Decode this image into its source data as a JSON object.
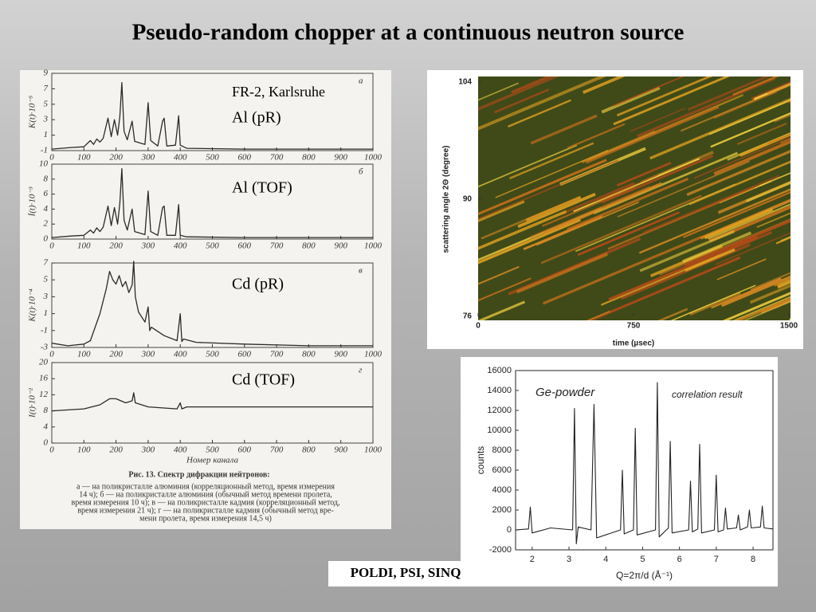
{
  "title": "Pseudo-random chopper at a continuous neutron source",
  "labels": {
    "source": "FR-2, Karlsruhe",
    "al_pr": "Al (pR)",
    "al_tof": "Al (TOF)",
    "cd_pr": "Cd (pR)",
    "cd_tof": "Cd (TOF)",
    "poldi": "POLDI, PSI, SINQ"
  },
  "scan_caption": [
    "Рис. 13. Спектр дифракции нейтронов:",
    "а — на поликристалле алюминия (корреляционный метод, время измерения",
    "14 ч); б — на поликристалле алюминия (обычный метод времени пролета,",
    "время измерения 10 ч); в — на поликристалле кадмия (корреляционный метод,",
    "время измерения 21 ч); г — на поликристалле кадмия (обычный метод вре-",
    "мени пролета, время измерения 14,5 ч)"
  ],
  "chart_data": [
    {
      "type": "line",
      "panel_label": "а",
      "y_label": "K(t)·10⁻⁵",
      "color": "#2a2a2a",
      "x": [
        0,
        60,
        100,
        120,
        130,
        140,
        150,
        160,
        175,
        185,
        195,
        205,
        212,
        218,
        225,
        235,
        250,
        258,
        290,
        300,
        308,
        330,
        345,
        350,
        358,
        385,
        395,
        400,
        420,
        600,
        1000
      ],
      "values": [
        -0.8,
        -0.6,
        -0.5,
        0.3,
        -0.2,
        0.5,
        0.1,
        0.6,
        3.2,
        0.8,
        3.0,
        1.0,
        3.4,
        7.8,
        1.5,
        0.4,
        2.8,
        0.2,
        -0.2,
        5.2,
        0.3,
        -0.4,
        2.8,
        3.2,
        -0.4,
        -0.3,
        3.5,
        -0.3,
        -0.7,
        -0.8,
        -0.8
      ],
      "xlim": [
        0,
        1000
      ],
      "ylim": [
        -1,
        9
      ],
      "xticks": [
        0,
        100,
        200,
        300,
        400,
        500,
        600,
        700,
        800,
        900,
        1000
      ],
      "yticks": [
        -1,
        1,
        3,
        5,
        7,
        9
      ]
    },
    {
      "type": "line",
      "panel_label": "б",
      "y_label": "İ(t)·10⁻³",
      "color": "#2a2a2a",
      "x": [
        0,
        60,
        100,
        120,
        130,
        140,
        150,
        160,
        175,
        185,
        195,
        205,
        212,
        218,
        225,
        235,
        250,
        258,
        290,
        300,
        308,
        330,
        345,
        350,
        358,
        385,
        395,
        400,
        420,
        600,
        1000
      ],
      "values": [
        0.2,
        0.4,
        0.5,
        1.2,
        0.8,
        1.5,
        1.0,
        1.6,
        4.4,
        1.8,
        4.2,
        2.0,
        4.8,
        9.4,
        2.5,
        1.2,
        4.0,
        1.0,
        0.6,
        6.4,
        1.0,
        0.5,
        4.2,
        4.4,
        0.5,
        0.5,
        4.6,
        0.5,
        0.3,
        0.2,
        0.2
      ],
      "xlim": [
        0,
        1000
      ],
      "ylim": [
        0,
        10
      ],
      "xticks": [
        0,
        100,
        200,
        300,
        400,
        500,
        600,
        700,
        800,
        900,
        1000
      ],
      "yticks": [
        0,
        2,
        4,
        6,
        8,
        10
      ]
    },
    {
      "type": "line",
      "panel_label": "в",
      "y_label": "K(t)·10⁻⁴",
      "color": "#2a2a2a",
      "x": [
        0,
        50,
        100,
        120,
        150,
        170,
        180,
        190,
        200,
        210,
        220,
        230,
        240,
        250,
        255,
        260,
        270,
        290,
        300,
        305,
        310,
        350,
        390,
        400,
        405,
        410,
        450,
        600,
        800,
        1000
      ],
      "values": [
        -2.5,
        -2.8,
        -2.6,
        -2.2,
        1.0,
        4.0,
        6.0,
        5.0,
        4.5,
        5.5,
        4.2,
        4.8,
        3.5,
        4.4,
        7.2,
        3.0,
        1.2,
        0.0,
        1.8,
        -1.0,
        -0.6,
        -1.6,
        -2.2,
        1.0,
        -2.3,
        -2.0,
        -2.4,
        -2.6,
        -2.8,
        -2.8
      ],
      "xlim": [
        0,
        1000
      ],
      "ylim": [
        -3,
        7
      ],
      "xticks": [
        0,
        100,
        200,
        300,
        400,
        500,
        600,
        700,
        800,
        900,
        1000
      ],
      "yticks": [
        -3,
        -1,
        1,
        3,
        5,
        7
      ]
    },
    {
      "type": "line",
      "panel_label": "г",
      "y_label": "I(t)·10⁻²",
      "x_label": "Номер канала",
      "color": "#2a2a2a",
      "x": [
        0,
        100,
        150,
        180,
        200,
        230,
        250,
        255,
        260,
        280,
        300,
        390,
        400,
        405,
        420,
        600,
        800,
        1000
      ],
      "values": [
        8,
        8.5,
        9.5,
        11,
        11,
        10,
        10.5,
        12.5,
        10,
        9.5,
        9,
        8.5,
        10,
        8.5,
        9,
        9,
        9,
        9
      ],
      "xlim": [
        0,
        1000
      ],
      "ylim": [
        0,
        20
      ],
      "xticks": [
        0,
        100,
        200,
        300,
        400,
        500,
        600,
        700,
        800,
        900,
        1000
      ],
      "yticks": [
        0,
        4,
        8,
        12,
        16,
        20
      ]
    },
    {
      "type": "heatmap",
      "x_label": "time (µsec)",
      "y_label": "scattering angle 2Θ (degree)",
      "xlim": [
        0,
        1500
      ],
      "ylim": [
        76,
        104
      ],
      "xticks": [
        0,
        750,
        1500
      ],
      "yticks": [
        76,
        90,
        104
      ]
    },
    {
      "type": "line",
      "title": "Ge-powder",
      "annotation": "correlation result",
      "x_label": "Q=2π/d (Å⁻¹)",
      "y_label": "counts",
      "color": "#222222",
      "x": [
        1.55,
        1.9,
        1.95,
        2.0,
        2.5,
        3.1,
        3.15,
        3.2,
        3.25,
        3.6,
        3.68,
        3.75,
        4.4,
        4.45,
        4.5,
        4.75,
        4.8,
        4.85,
        5.35,
        5.4,
        5.45,
        5.7,
        5.75,
        5.8,
        6.25,
        6.3,
        6.35,
        6.5,
        6.55,
        6.6,
        6.95,
        7.0,
        7.05,
        7.2,
        7.25,
        7.3,
        7.55,
        7.6,
        7.65,
        7.85,
        7.9,
        7.95,
        8.2,
        8.25,
        8.3,
        8.54
      ],
      "values": [
        0,
        100,
        2300,
        -300,
        200,
        0,
        12200,
        -1400,
        300,
        0,
        12600,
        -800,
        0,
        6000,
        -400,
        0,
        10200,
        -500,
        0,
        14800,
        -700,
        200,
        8900,
        -300,
        0,
        4900,
        -200,
        100,
        8600,
        -300,
        0,
        5500,
        -200,
        0,
        2200,
        100,
        200,
        1500,
        0,
        300,
        2000,
        200,
        300,
        2400,
        200,
        100
      ],
      "xlim": [
        1.55,
        8.54
      ],
      "ylim": [
        -2000,
        16000
      ],
      "xticks": [
        2,
        3,
        4,
        5,
        6,
        7,
        8
      ],
      "yticks": [
        -2000,
        0,
        2000,
        4000,
        6000,
        8000,
        10000,
        12000,
        14000,
        16000
      ]
    }
  ]
}
